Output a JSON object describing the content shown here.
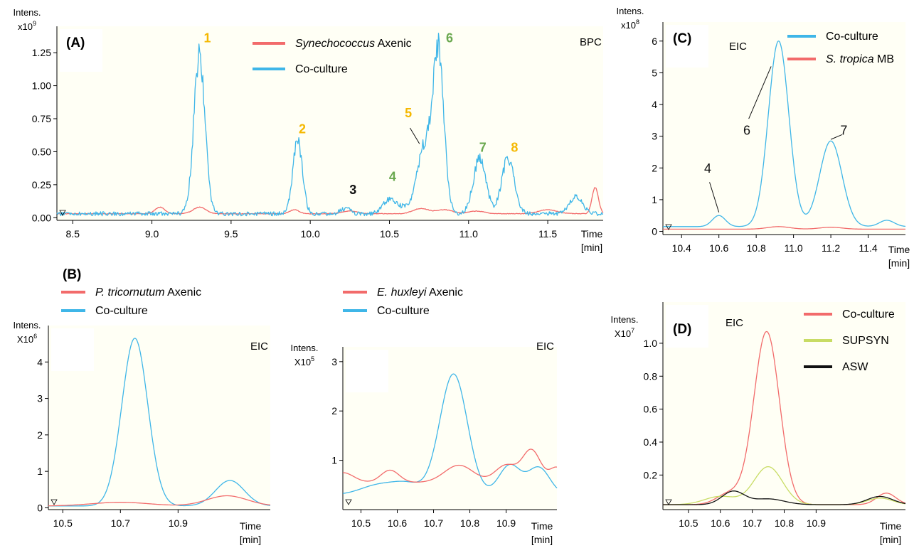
{
  "figure": {
    "section_label_b": "(B)",
    "colors": {
      "axenic": "#f26b6b",
      "coculture": "#3fb6e8",
      "supsyn": "#c8dc64",
      "asw": "#111111",
      "plot_bg": "#fffff5",
      "yellow_label": "#f5b800",
      "green_label": "#6aa84f",
      "black_label": "#111111"
    }
  },
  "chart_data": [
    {
      "id": "A",
      "type": "line",
      "panel_label": "(A)",
      "corner_label": "BPC",
      "ylabel_line1": "Intens.",
      "ylabel_base": "x10",
      "ylabel_exp": "9",
      "xlabel_line1": "Time",
      "xlabel_line2": "[min]",
      "xlim": [
        8.4,
        11.85
      ],
      "ylim": [
        -0.02,
        1.45
      ],
      "x_ticks": [
        8.5,
        9.0,
        9.5,
        10.0,
        10.5,
        11.0,
        11.5
      ],
      "x_tick_labels": [
        "8.5",
        "9.0",
        "9.5",
        "10.0",
        "10.5",
        "11.0",
        "11.5"
      ],
      "y_ticks": [
        0.0,
        0.25,
        0.5,
        0.75,
        1.0,
        1.25
      ],
      "y_tick_labels": [
        "0.00",
        "0.25",
        "0.50",
        "0.75",
        "1.00",
        "1.25"
      ],
      "legend": [
        {
          "name": "Synechococcus",
          "name_suffix": " Axenic",
          "italic": true,
          "color": "#f26b6b"
        },
        {
          "name": "Co-culture",
          "name_suffix": "",
          "italic": false,
          "color": "#3fb6e8"
        }
      ],
      "series": [
        {
          "name": "Synechococcus Axenic",
          "color": "#f26b6b",
          "noise": 0.006,
          "baseline": 0.03,
          "peaks": [
            [
              9.05,
              0.05,
              0.03
            ],
            [
              9.3,
              0.05,
              0.04
            ],
            [
              9.9,
              0.03,
              0.03
            ],
            [
              10.25,
              0.02,
              0.05
            ],
            [
              10.7,
              0.04,
              0.05
            ],
            [
              10.85,
              0.03,
              0.05
            ],
            [
              11.05,
              0.02,
              0.05
            ],
            [
              11.5,
              0.03,
              0.06
            ],
            [
              11.8,
              0.2,
              0.02
            ]
          ]
        },
        {
          "name": "Co-culture",
          "color": "#3fb6e8",
          "noise": 0.045,
          "baseline": 0.03,
          "peaks": [
            [
              9.3,
              1.2,
              0.035
            ],
            [
              9.92,
              0.55,
              0.03
            ],
            [
              10.22,
              0.04,
              0.03
            ],
            [
              10.5,
              0.11,
              0.04
            ],
            [
              10.6,
              0.05,
              0.04
            ],
            [
              10.72,
              0.5,
              0.045
            ],
            [
              10.81,
              1.2,
              0.035
            ],
            [
              11.07,
              0.42,
              0.04
            ],
            [
              11.25,
              0.42,
              0.04
            ],
            [
              11.68,
              0.13,
              0.04
            ]
          ]
        }
      ],
      "annotations": [
        {
          "text": "1",
          "x": 9.35,
          "y": 1.33,
          "color": "#f5b800"
        },
        {
          "text": "2",
          "x": 9.95,
          "y": 0.64,
          "color": "#f5b800"
        },
        {
          "text": "3",
          "x": 10.27,
          "y": 0.18,
          "color": "#111111"
        },
        {
          "text": "4",
          "x": 10.52,
          "y": 0.28,
          "color": "#6aa84f"
        },
        {
          "text": "5",
          "x": 10.62,
          "y": 0.76,
          "color": "#f5b800"
        },
        {
          "text": "6",
          "x": 10.88,
          "y": 1.33,
          "color": "#6aa84f"
        },
        {
          "text": "7",
          "x": 11.09,
          "y": 0.5,
          "color": "#6aa84f"
        },
        {
          "text": "8",
          "x": 11.29,
          "y": 0.5,
          "color": "#f5b800"
        }
      ],
      "leaders": [
        [
          10.63,
          0.68,
          10.69,
          0.56
        ]
      ]
    },
    {
      "id": "C",
      "type": "line",
      "panel_label": "(C)",
      "corner_label": "EIC",
      "ylabel_line1": "Intens.",
      "ylabel_base": "x10",
      "ylabel_exp": "8",
      "xlabel_line1": "Time",
      "xlabel_line2": "[min]",
      "xlim": [
        10.3,
        11.6
      ],
      "ylim": [
        -0.1,
        6.6
      ],
      "x_ticks": [
        10.4,
        10.6,
        10.8,
        11.0,
        11.2,
        11.4
      ],
      "x_tick_labels": [
        "10.4",
        "10.6",
        "10.8",
        "11.0",
        "11.2",
        "11.4"
      ],
      "y_ticks": [
        0,
        1,
        2,
        3,
        4,
        5,
        6
      ],
      "y_tick_labels": [
        "0",
        "1",
        "2",
        "3",
        "4",
        "5",
        "6"
      ],
      "legend": [
        {
          "name": "Co-culture",
          "name_suffix": "",
          "italic": false,
          "color": "#3fb6e8"
        },
        {
          "name": "S. tropica",
          "name_suffix": " MB",
          "italic": true,
          "color": "#f26b6b"
        }
      ],
      "series": [
        {
          "name": "Co-culture",
          "color": "#3fb6e8",
          "noise": 0,
          "baseline": 0.15,
          "peaks": [
            [
              10.6,
              0.35,
              0.035
            ],
            [
              10.92,
              5.85,
              0.055
            ],
            [
              11.2,
              2.7,
              0.06
            ],
            [
              11.5,
              0.2,
              0.04
            ]
          ]
        },
        {
          "name": "S. tropica MB",
          "color": "#f26b6b",
          "noise": 0,
          "baseline": 0.07,
          "peaks": [
            [
              10.92,
              0.08,
              0.06
            ],
            [
              11.2,
              0.06,
              0.06
            ]
          ]
        }
      ],
      "annotations": [
        {
          "text": "4",
          "x": 10.54,
          "y": 1.85,
          "color": "#111111"
        },
        {
          "text": "6",
          "x": 10.75,
          "y": 3.05,
          "color": "#111111"
        },
        {
          "text": "7",
          "x": 11.27,
          "y": 3.05,
          "color": "#111111"
        }
      ],
      "leaders": [
        [
          10.55,
          1.55,
          10.6,
          0.6
        ],
        [
          10.76,
          3.55,
          10.88,
          5.2
        ],
        [
          11.26,
          3.05,
          11.2,
          2.9
        ]
      ]
    },
    {
      "id": "B1",
      "type": "line",
      "panel_label": "",
      "corner_label": "EIC",
      "ylabel_line1": "Intens.",
      "ylabel_base": "X10",
      "ylabel_exp": "6",
      "xlabel_line1": "Time",
      "xlabel_line2": "[min]",
      "xlim": [
        10.45,
        11.22
      ],
      "ylim": [
        -0.05,
        5.0
      ],
      "x_ticks": [
        10.5,
        10.7,
        10.9
      ],
      "x_tick_labels": [
        "10.5",
        "10.7",
        "10.9"
      ],
      "y_ticks": [
        0,
        1,
        2,
        3,
        4
      ],
      "y_tick_labels": [
        "0",
        "1",
        "2",
        "3",
        "4"
      ],
      "legend": [
        {
          "name": "P. tricornutum",
          "name_suffix": " Axenic",
          "italic": true,
          "color": "#f26b6b"
        },
        {
          "name": "Co-culture",
          "name_suffix": "",
          "italic": false,
          "color": "#3fb6e8"
        }
      ],
      "series": [
        {
          "name": "Co-culture",
          "color": "#3fb6e8",
          "noise": 0,
          "baseline": 0.05,
          "peaks": [
            [
              10.75,
              4.6,
              0.045
            ],
            [
              11.08,
              0.7,
              0.05
            ]
          ]
        },
        {
          "name": "P. tricornutum Axenic",
          "color": "#f26b6b",
          "noise": 0,
          "baseline": 0.05,
          "peaks": [
            [
              10.7,
              0.1,
              0.1
            ],
            [
              11.07,
              0.28,
              0.07
            ]
          ]
        }
      ],
      "annotations": [],
      "leaders": []
    },
    {
      "id": "B2",
      "type": "line",
      "panel_label": "",
      "corner_label": "EIC",
      "ylabel_line1": "Intens.",
      "ylabel_base": "X10",
      "ylabel_exp": "5",
      "xlabel_line1": "Time",
      "xlabel_line2": "[min]",
      "xlim": [
        10.45,
        11.04
      ],
      "ylim": [
        0,
        3.3
      ],
      "x_ticks": [
        10.5,
        10.6,
        10.7,
        10.8,
        10.9
      ],
      "x_tick_labels": [
        "10.5",
        "10.6",
        "10.7",
        "10.8",
        "10.9"
      ],
      "y_ticks": [
        1,
        2,
        3
      ],
      "y_tick_labels": [
        "1",
        "2",
        "3"
      ],
      "legend": [
        {
          "name": "E. huxleyi",
          "name_suffix": " Axenic",
          "italic": true,
          "color": "#f26b6b"
        },
        {
          "name": "Co-culture",
          "name_suffix": "",
          "italic": false,
          "color": "#3fb6e8"
        }
      ],
      "series": [
        {
          "name": "Co-culture",
          "color": "#3fb6e8",
          "noise": 0,
          "baseline": 0.3,
          "peaks": [
            [
              10.55,
              0.2,
              0.05
            ],
            [
              10.63,
              0.2,
              0.04
            ],
            [
              10.755,
              2.45,
              0.038
            ],
            [
              10.91,
              0.6,
              0.03
            ],
            [
              10.99,
              0.55,
              0.03
            ]
          ]
        },
        {
          "name": "E. huxleyi Axenic",
          "color": "#f26b6b",
          "noise": 0,
          "baseline": 0.55,
          "peaks": [
            [
              10.45,
              0.2,
              0.03
            ],
            [
              10.58,
              0.25,
              0.025
            ],
            [
              10.77,
              0.35,
              0.04
            ],
            [
              10.9,
              0.35,
              0.03
            ],
            [
              10.97,
              0.65,
              0.025
            ],
            [
              11.04,
              0.3,
              0.02
            ]
          ]
        }
      ],
      "annotations": [],
      "leaders": []
    },
    {
      "id": "D",
      "type": "line",
      "panel_label": "(D)",
      "corner_label": "EIC",
      "ylabel_line1": "Intens.",
      "ylabel_base": "X10",
      "ylabel_exp": "7",
      "xlabel_line1": "Time",
      "xlabel_line2": "[min]",
      "xlim": [
        10.42,
        11.18
      ],
      "ylim": [
        -0.01,
        1.25
      ],
      "x_ticks": [
        10.5,
        10.6,
        10.7,
        10.8,
        10.9
      ],
      "x_tick_labels": [
        "10.5",
        "10.6",
        "10.7",
        "10.8",
        "10.9"
      ],
      "y_ticks": [
        0.2,
        0.4,
        0.6,
        0.8,
        1.0
      ],
      "y_tick_labels": [
        "0.2",
        "0.4",
        "0.6",
        "0.8",
        "1.0"
      ],
      "legend": [
        {
          "name": "Co-culture",
          "name_suffix": "",
          "italic": false,
          "color": "#f26b6b"
        },
        {
          "name": "SUPSYN",
          "name_suffix": "",
          "italic": false,
          "color": "#c8dc64"
        },
        {
          "name": "ASW",
          "name_suffix": "",
          "italic": false,
          "color": "#111111"
        }
      ],
      "series": [
        {
          "name": "Co-culture",
          "color": "#f26b6b",
          "noise": 0,
          "baseline": 0.02,
          "peaks": [
            [
              10.63,
              0.07,
              0.04
            ],
            [
              10.745,
              1.05,
              0.04
            ],
            [
              11.12,
              0.07,
              0.03
            ]
          ]
        },
        {
          "name": "SUPSYN",
          "color": "#c8dc64",
          "noise": 0,
          "baseline": 0.02,
          "peaks": [
            [
              10.6,
              0.05,
              0.05
            ],
            [
              10.75,
              0.23,
              0.045
            ],
            [
              11.1,
              0.04,
              0.04
            ]
          ]
        },
        {
          "name": "ASW",
          "color": "#111111",
          "noise": 0,
          "baseline": 0.02,
          "peaks": [
            [
              10.64,
              0.08,
              0.035
            ],
            [
              10.75,
              0.035,
              0.05
            ],
            [
              11.1,
              0.05,
              0.04
            ]
          ]
        }
      ],
      "annotations": [],
      "leaders": []
    }
  ]
}
